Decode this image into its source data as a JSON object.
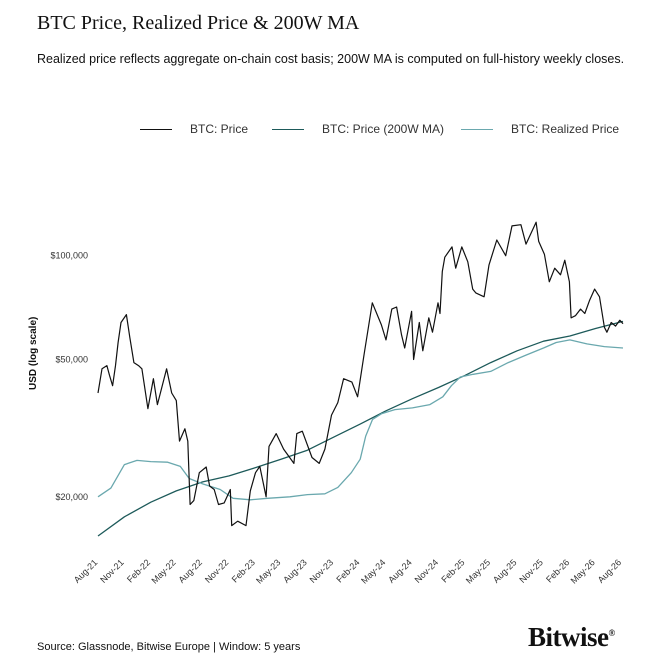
{
  "header": {
    "title": "BTC Price, Realized Price & 200W MA",
    "subtitle": "Realized price reflects aggregate on-chain cost basis; 200W MA is computed on full-history weekly closes."
  },
  "footer": {
    "source": "Source: Glassnode, Bitwise Europe | Window: 5 years",
    "brand": "Bitwise",
    "brand_mark": "®"
  },
  "colors": {
    "price": "#111111",
    "ma200": "#1d5a5a",
    "realized": "#6aa8ae",
    "tick_text": "#333333"
  },
  "chart_data": {
    "type": "line",
    "y_scale": "log",
    "ylabel": "USD (log scale)",
    "ylim": [
      14500,
      145000
    ],
    "y_ticks": [
      {
        "value": 20000,
        "label": "$20,000"
      },
      {
        "value": 50000,
        "label": "$50,000"
      },
      {
        "value": 100000,
        "label": "$100,000"
      }
    ],
    "x_ticks": [
      "Aug-21",
      "Nov-21",
      "Feb-22",
      "May-22",
      "Aug-22",
      "Nov-22",
      "Feb-23",
      "May-23",
      "Aug-23",
      "Nov-23",
      "Feb-24",
      "May-24",
      "Aug-24",
      "Nov-24",
      "Feb-25",
      "May-25",
      "Aug-25",
      "Nov-25",
      "Feb-26",
      "May-26",
      "Aug-26"
    ],
    "legend_position": "top",
    "grid": false,
    "series": [
      {
        "name": "BTC: Price",
        "color": "#111111",
        "points": [
          [
            "2021-08-01",
            40000
          ],
          [
            "2021-08-15",
            47000
          ],
          [
            "2021-09-01",
            48000
          ],
          [
            "2021-09-10",
            45000
          ],
          [
            "2021-09-21",
            42000
          ],
          [
            "2021-10-01",
            48000
          ],
          [
            "2021-10-10",
            56000
          ],
          [
            "2021-10-20",
            64000
          ],
          [
            "2021-11-08",
            67500
          ],
          [
            "2021-11-20",
            58000
          ],
          [
            "2021-12-04",
            49000
          ],
          [
            "2021-12-20",
            48000
          ],
          [
            "2022-01-01",
            47000
          ],
          [
            "2022-01-22",
            36000
          ],
          [
            "2022-02-10",
            44000
          ],
          [
            "2022-02-24",
            37000
          ],
          [
            "2022-03-28",
            47000
          ],
          [
            "2022-04-15",
            40000
          ],
          [
            "2022-05-01",
            38000
          ],
          [
            "2022-05-12",
            29000
          ],
          [
            "2022-05-31",
            31500
          ],
          [
            "2022-06-10",
            29000
          ],
          [
            "2022-06-18",
            19000
          ],
          [
            "2022-07-01",
            19500
          ],
          [
            "2022-07-20",
            23500
          ],
          [
            "2022-08-13",
            24400
          ],
          [
            "2022-08-25",
            21500
          ],
          [
            "2022-09-10",
            21000
          ],
          [
            "2022-09-25",
            19000
          ],
          [
            "2022-10-15",
            19200
          ],
          [
            "2022-11-05",
            21000
          ],
          [
            "2022-11-10",
            16500
          ],
          [
            "2022-12-01",
            17000
          ],
          [
            "2022-12-30",
            16500
          ],
          [
            "2023-01-14",
            20800
          ],
          [
            "2023-02-01",
            23500
          ],
          [
            "2023-02-16",
            24500
          ],
          [
            "2023-03-10",
            20000
          ],
          [
            "2023-03-20",
            28000
          ],
          [
            "2023-04-14",
            30500
          ],
          [
            "2023-05-10",
            27500
          ],
          [
            "2023-06-15",
            25000
          ],
          [
            "2023-06-25",
            30500
          ],
          [
            "2023-07-14",
            31000
          ],
          [
            "2023-08-17",
            26000
          ],
          [
            "2023-09-11",
            25000
          ],
          [
            "2023-10-01",
            27500
          ],
          [
            "2023-10-24",
            34500
          ],
          [
            "2023-11-15",
            37500
          ],
          [
            "2023-12-05",
            44000
          ],
          [
            "2024-01-03",
            43000
          ],
          [
            "2024-01-23",
            39000
          ],
          [
            "2024-02-15",
            52000
          ],
          [
            "2024-03-14",
            73000
          ],
          [
            "2024-04-15",
            63000
          ],
          [
            "2024-05-01",
            57000
          ],
          [
            "2024-05-21",
            70000
          ],
          [
            "2024-06-07",
            71000
          ],
          [
            "2024-06-24",
            59000
          ],
          [
            "2024-07-05",
            54000
          ],
          [
            "2024-07-29",
            69000
          ],
          [
            "2024-08-05",
            50000
          ],
          [
            "2024-08-25",
            64000
          ],
          [
            "2024-09-06",
            53000
          ],
          [
            "2024-09-27",
            66000
          ],
          [
            "2024-10-10",
            60000
          ],
          [
            "2024-10-29",
            73000
          ],
          [
            "2024-11-05",
            68000
          ],
          [
            "2024-11-13",
            90000
          ],
          [
            "2024-11-22",
            99000
          ],
          [
            "2024-12-17",
            106000
          ],
          [
            "2024-12-30",
            92000
          ],
          [
            "2025-01-20",
            106000
          ],
          [
            "2025-02-10",
            96000
          ],
          [
            "2025-02-27",
            80000
          ],
          [
            "2025-03-10",
            78000
          ],
          [
            "2025-04-08",
            76000
          ],
          [
            "2025-04-25",
            94000
          ],
          [
            "2025-05-22",
            111000
          ],
          [
            "2025-06-22",
            100000
          ],
          [
            "2025-07-14",
            122000
          ],
          [
            "2025-08-14",
            123000
          ],
          [
            "2025-09-01",
            108000
          ],
          [
            "2025-10-06",
            125000
          ],
          [
            "2025-10-15",
            110000
          ],
          [
            "2025-11-04",
            101000
          ],
          [
            "2025-11-21",
            84000
          ],
          [
            "2025-12-10",
            92000
          ],
          [
            "2025-12-30",
            88000
          ],
          [
            "2026-01-14",
            97000
          ],
          [
            "2026-01-30",
            84000
          ],
          [
            "2026-02-05",
            66000
          ],
          [
            "2026-02-20",
            67000
          ],
          [
            "2026-03-10",
            70000
          ],
          [
            "2026-03-25",
            68000
          ],
          [
            "2026-04-10",
            74000
          ],
          [
            "2026-04-28",
            80000
          ],
          [
            "2026-05-15",
            76000
          ],
          [
            "2026-06-01",
            62000
          ],
          [
            "2026-06-10",
            60000
          ],
          [
            "2026-06-25",
            64000
          ],
          [
            "2026-07-10",
            62500
          ],
          [
            "2026-07-25",
            65000
          ],
          [
            "2026-08-05",
            63500
          ]
        ]
      },
      {
        "name": "BTC: Price (200W MA)",
        "color": "#1d5a5a",
        "points": [
          [
            "2021-08-01",
            15400
          ],
          [
            "2021-11-01",
            17500
          ],
          [
            "2022-02-01",
            19300
          ],
          [
            "2022-05-01",
            20800
          ],
          [
            "2022-08-01",
            22100
          ],
          [
            "2022-11-01",
            23000
          ],
          [
            "2023-02-01",
            24300
          ],
          [
            "2023-05-01",
            25700
          ],
          [
            "2023-08-01",
            27300
          ],
          [
            "2023-11-01",
            29800
          ],
          [
            "2024-02-01",
            32500
          ],
          [
            "2024-05-01",
            35500
          ],
          [
            "2024-08-01",
            38500
          ],
          [
            "2024-11-01",
            41500
          ],
          [
            "2025-02-01",
            45000
          ],
          [
            "2025-05-01",
            49000
          ],
          [
            "2025-08-01",
            53000
          ],
          [
            "2025-11-01",
            56500
          ],
          [
            "2026-02-01",
            58500
          ],
          [
            "2026-05-01",
            61500
          ],
          [
            "2026-08-05",
            64500
          ]
        ]
      },
      {
        "name": "BTC: Realized Price",
        "color": "#6aa8ae",
        "points": [
          [
            "2021-08-01",
            20000
          ],
          [
            "2021-09-15",
            21200
          ],
          [
            "2021-11-01",
            24800
          ],
          [
            "2021-12-15",
            25500
          ],
          [
            "2022-02-01",
            25300
          ],
          [
            "2022-04-01",
            25200
          ],
          [
            "2022-05-15",
            24500
          ],
          [
            "2022-06-15",
            22600
          ],
          [
            "2022-08-01",
            21800
          ],
          [
            "2022-10-01",
            21000
          ],
          [
            "2022-11-15",
            19800
          ],
          [
            "2023-01-15",
            19600
          ],
          [
            "2023-03-15",
            19800
          ],
          [
            "2023-06-01",
            20000
          ],
          [
            "2023-08-01",
            20300
          ],
          [
            "2023-10-01",
            20400
          ],
          [
            "2023-11-15",
            21300
          ],
          [
            "2024-01-01",
            23500
          ],
          [
            "2024-02-01",
            25700
          ],
          [
            "2024-02-20",
            30000
          ],
          [
            "2024-03-15",
            33500
          ],
          [
            "2024-04-15",
            34800
          ],
          [
            "2024-06-01",
            35800
          ],
          [
            "2024-08-01",
            36200
          ],
          [
            "2024-10-01",
            37000
          ],
          [
            "2024-11-15",
            39000
          ],
          [
            "2024-12-15",
            42000
          ],
          [
            "2025-01-15",
            44500
          ],
          [
            "2025-03-01",
            45300
          ],
          [
            "2025-05-01",
            46200
          ],
          [
            "2025-07-01",
            49000
          ],
          [
            "2025-09-01",
            51500
          ],
          [
            "2025-11-01",
            54000
          ],
          [
            "2025-12-15",
            56000
          ],
          [
            "2026-02-01",
            57000
          ],
          [
            "2026-04-01",
            55500
          ],
          [
            "2026-06-01",
            54500
          ],
          [
            "2026-08-05",
            54000
          ]
        ]
      }
    ]
  }
}
